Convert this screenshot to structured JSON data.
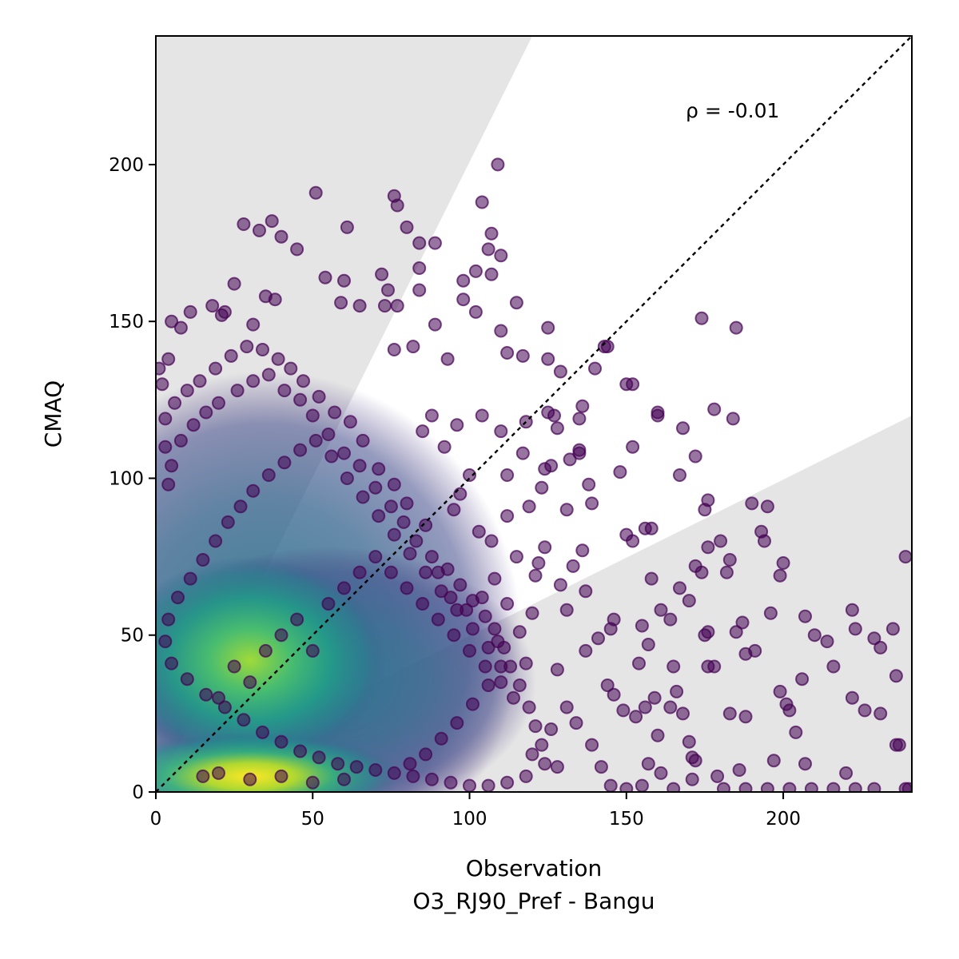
{
  "chart_data": {
    "type": "scatter",
    "xlabel": "Observation",
    "xlabel_sub": "O3_RJ90_Pref - Bangu",
    "ylabel": "CMAQ",
    "xlim": [
      0,
      241
    ],
    "ylim": [
      0,
      241
    ],
    "xticks": [
      0,
      50,
      100,
      150,
      200
    ],
    "yticks": [
      0,
      50,
      100,
      150,
      200
    ],
    "annotation": "ρ = -0.01",
    "grid": false,
    "identity_line": true,
    "shaded_wedges": [
      {
        "from": [
          0,
          0
        ],
        "upper_edge_point": [
          120,
          241
        ],
        "fill": "#e5e5e5"
      },
      {
        "from": [
          0,
          0
        ],
        "lower_edge_point": [
          241,
          120
        ],
        "fill": "#e5e5e5"
      }
    ],
    "colormap": "viridis",
    "point_color_low_density": "#440154",
    "point_color_high_density": "#fde725",
    "density_clusters": [
      {
        "x": 25,
        "y": 5,
        "peak_density": 1.0
      },
      {
        "x": 30,
        "y": 42,
        "peak_density": 0.85
      }
    ],
    "sample_points": [
      [
        109,
        200
      ],
      [
        51,
        191
      ],
      [
        76,
        190
      ],
      [
        77,
        187
      ],
      [
        104,
        188
      ],
      [
        37,
        182
      ],
      [
        28,
        181
      ],
      [
        33,
        179
      ],
      [
        40,
        177
      ],
      [
        61,
        180
      ],
      [
        80,
        180
      ],
      [
        89,
        175
      ],
      [
        84,
        175
      ],
      [
        45,
        173
      ],
      [
        107,
        178
      ],
      [
        106,
        173
      ],
      [
        110,
        171
      ],
      [
        102,
        166
      ],
      [
        107,
        165
      ],
      [
        84,
        167
      ],
      [
        54,
        164
      ],
      [
        60,
        163
      ],
      [
        72,
        165
      ],
      [
        25,
        162
      ],
      [
        98,
        163
      ],
      [
        74,
        160
      ],
      [
        84,
        160
      ],
      [
        98,
        157
      ],
      [
        115,
        156
      ],
      [
        35,
        158
      ],
      [
        38,
        157
      ],
      [
        18,
        155
      ],
      [
        59,
        156
      ],
      [
        65,
        155
      ],
      [
        22,
        153
      ],
      [
        11,
        153
      ],
      [
        73,
        155
      ],
      [
        77,
        155
      ],
      [
        102,
        153
      ],
      [
        5,
        150
      ],
      [
        8,
        148
      ],
      [
        21,
        152
      ],
      [
        31,
        149
      ],
      [
        89,
        149
      ],
      [
        110,
        147
      ],
      [
        125,
        148
      ],
      [
        174,
        151
      ],
      [
        185,
        148
      ],
      [
        143,
        142
      ],
      [
        144,
        142
      ],
      [
        112,
        140
      ],
      [
        117,
        139
      ],
      [
        4,
        138
      ],
      [
        76,
        141
      ],
      [
        82,
        142
      ],
      [
        93,
        138
      ],
      [
        125,
        138
      ],
      [
        140,
        135
      ],
      [
        129,
        134
      ],
      [
        150,
        130
      ],
      [
        152,
        130
      ],
      [
        168,
        116
      ],
      [
        160,
        121
      ],
      [
        178,
        122
      ],
      [
        184,
        119
      ],
      [
        172,
        107
      ],
      [
        167,
        101
      ],
      [
        160,
        120
      ],
      [
        152,
        110
      ],
      [
        148,
        102
      ],
      [
        135,
        109
      ],
      [
        135,
        108
      ],
      [
        138,
        98
      ],
      [
        139,
        92
      ],
      [
        131,
        90
      ],
      [
        156,
        84
      ],
      [
        158,
        84
      ],
      [
        150,
        82
      ],
      [
        152,
        80
      ],
      [
        175,
        90
      ],
      [
        176,
        93
      ],
      [
        190,
        92
      ],
      [
        195,
        91
      ],
      [
        193,
        83
      ],
      [
        194,
        80
      ],
      [
        180,
        80
      ],
      [
        176,
        78
      ],
      [
        172,
        72
      ],
      [
        174,
        70
      ],
      [
        182,
        70
      ],
      [
        183,
        74
      ],
      [
        200,
        73
      ],
      [
        199,
        69
      ],
      [
        239,
        75
      ],
      [
        158,
        68
      ],
      [
        167,
        65
      ],
      [
        170,
        61
      ],
      [
        161,
        58
      ],
      [
        164,
        55
      ],
      [
        155,
        53
      ],
      [
        145,
        52
      ],
      [
        146,
        55
      ],
      [
        157,
        47
      ],
      [
        175,
        50
      ],
      [
        176,
        51
      ],
      [
        187,
        54
      ],
      [
        185,
        51
      ],
      [
        196,
        57
      ],
      [
        191,
        45
      ],
      [
        188,
        44
      ],
      [
        207,
        56
      ],
      [
        210,
        50
      ],
      [
        214,
        48
      ],
      [
        222,
        58
      ],
      [
        223,
        52
      ],
      [
        229,
        49
      ],
      [
        231,
        46
      ],
      [
        235,
        52
      ],
      [
        216,
        40
      ],
      [
        176,
        40
      ],
      [
        178,
        40
      ],
      [
        165,
        40
      ],
      [
        154,
        41
      ],
      [
        159,
        30
      ],
      [
        166,
        32
      ],
      [
        168,
        25
      ],
      [
        171,
        11
      ],
      [
        172,
        10
      ],
      [
        183,
        25
      ],
      [
        188,
        24
      ],
      [
        199,
        32
      ],
      [
        201,
        28
      ],
      [
        202,
        26
      ],
      [
        206,
        36
      ],
      [
        222,
        30
      ],
      [
        226,
        26
      ],
      [
        231,
        25
      ],
      [
        236,
        37
      ],
      [
        204,
        19
      ],
      [
        170,
        16
      ],
      [
        160,
        18
      ],
      [
        144,
        34
      ],
      [
        146,
        31
      ],
      [
        149,
        26
      ],
      [
        153,
        24
      ],
      [
        156,
        27
      ],
      [
        164,
        27
      ],
      [
        197,
        10
      ],
      [
        207,
        9
      ],
      [
        220,
        6
      ],
      [
        236,
        15
      ],
      [
        237,
        15
      ],
      [
        186,
        7
      ],
      [
        179,
        5
      ],
      [
        157,
        9
      ],
      [
        161,
        6
      ],
      [
        171,
        4
      ],
      [
        181,
        1
      ],
      [
        188,
        1
      ],
      [
        195,
        1
      ],
      [
        202,
        1
      ],
      [
        209,
        1
      ],
      [
        216,
        1
      ],
      [
        223,
        1
      ],
      [
        229,
        1
      ],
      [
        239,
        1
      ],
      [
        240,
        1
      ],
      [
        145,
        2
      ],
      [
        150,
        1
      ],
      [
        155,
        2
      ],
      [
        165,
        1
      ],
      [
        133,
        72
      ],
      [
        129,
        66
      ],
      [
        122,
        73
      ],
      [
        124,
        78
      ],
      [
        120,
        57
      ],
      [
        112,
        60
      ],
      [
        108,
        68
      ],
      [
        103,
        83
      ],
      [
        100,
        101
      ],
      [
        97,
        95
      ],
      [
        95,
        90
      ],
      [
        88,
        120
      ],
      [
        85,
        115
      ],
      [
        92,
        110
      ],
      [
        96,
        117
      ],
      [
        104,
        120
      ],
      [
        110,
        115
      ],
      [
        118,
        118
      ],
      [
        124,
        103
      ],
      [
        126,
        104
      ],
      [
        123,
        97
      ],
      [
        117,
        108
      ],
      [
        112,
        101
      ],
      [
        125,
        121
      ],
      [
        127,
        120
      ],
      [
        128,
        116
      ],
      [
        136,
        123
      ],
      [
        135,
        119
      ],
      [
        132,
        106
      ],
      [
        119,
        91
      ],
      [
        112,
        88
      ],
      [
        107,
        80
      ],
      [
        115,
        75
      ],
      [
        121,
        69
      ],
      [
        136,
        77
      ],
      [
        131,
        58
      ],
      [
        137,
        64
      ],
      [
        141,
        49
      ],
      [
        137,
        45
      ],
      [
        128,
        39
      ],
      [
        131,
        27
      ],
      [
        126,
        20
      ],
      [
        134,
        22
      ],
      [
        139,
        15
      ],
      [
        142,
        8
      ],
      [
        128,
        8
      ],
      [
        120,
        12
      ],
      [
        114,
        30
      ],
      [
        118,
        41
      ],
      [
        116,
        51
      ],
      [
        109,
        48
      ],
      [
        104,
        62
      ],
      [
        99,
        58
      ],
      [
        94,
        62
      ],
      [
        90,
        70
      ],
      [
        86,
        85
      ],
      [
        80,
        92
      ],
      [
        76,
        98
      ],
      [
        71,
        103
      ],
      [
        66,
        112
      ],
      [
        62,
        118
      ],
      [
        57,
        121
      ],
      [
        52,
        126
      ],
      [
        47,
        131
      ],
      [
        43,
        135
      ],
      [
        39,
        138
      ],
      [
        34,
        141
      ],
      [
        29,
        142
      ],
      [
        24,
        139
      ],
      [
        19,
        135
      ],
      [
        14,
        131
      ],
      [
        10,
        128
      ],
      [
        6,
        124
      ],
      [
        3,
        119
      ],
      [
        2,
        130
      ],
      [
        1,
        135
      ],
      [
        3,
        110
      ],
      [
        5,
        104
      ],
      [
        4,
        98
      ],
      [
        8,
        112
      ],
      [
        12,
        117
      ],
      [
        16,
        121
      ],
      [
        20,
        124
      ],
      [
        26,
        128
      ],
      [
        31,
        131
      ],
      [
        36,
        133
      ],
      [
        41,
        128
      ],
      [
        46,
        125
      ],
      [
        50,
        120
      ],
      [
        55,
        114
      ],
      [
        60,
        108
      ],
      [
        65,
        104
      ],
      [
        70,
        97
      ],
      [
        75,
        91
      ],
      [
        79,
        86
      ],
      [
        83,
        80
      ],
      [
        88,
        75
      ],
      [
        93,
        71
      ],
      [
        97,
        66
      ],
      [
        101,
        61
      ],
      [
        105,
        56
      ],
      [
        108,
        52
      ],
      [
        111,
        46
      ],
      [
        113,
        40
      ],
      [
        116,
        34
      ],
      [
        119,
        27
      ],
      [
        121,
        21
      ],
      [
        123,
        15
      ],
      [
        124,
        9
      ],
      [
        118,
        5
      ],
      [
        112,
        3
      ],
      [
        106,
        2
      ],
      [
        100,
        2
      ],
      [
        94,
        3
      ],
      [
        88,
        4
      ],
      [
        82,
        5
      ],
      [
        76,
        6
      ],
      [
        70,
        7
      ],
      [
        64,
        8
      ],
      [
        58,
        9
      ],
      [
        52,
        11
      ],
      [
        46,
        13
      ],
      [
        40,
        16
      ],
      [
        34,
        19
      ],
      [
        28,
        23
      ],
      [
        22,
        27
      ],
      [
        16,
        31
      ],
      [
        10,
        36
      ],
      [
        5,
        41
      ],
      [
        3,
        48
      ],
      [
        4,
        55
      ],
      [
        7,
        62
      ],
      [
        11,
        68
      ],
      [
        15,
        74
      ],
      [
        19,
        80
      ],
      [
        23,
        86
      ],
      [
        27,
        91
      ],
      [
        31,
        96
      ],
      [
        36,
        101
      ],
      [
        41,
        105
      ],
      [
        46,
        109
      ],
      [
        51,
        112
      ],
      [
        56,
        107
      ],
      [
        61,
        100
      ],
      [
        66,
        94
      ],
      [
        71,
        88
      ],
      [
        76,
        82
      ],
      [
        81,
        76
      ],
      [
        86,
        70
      ],
      [
        91,
        64
      ],
      [
        96,
        58
      ],
      [
        101,
        52
      ],
      [
        106,
        46
      ],
      [
        110,
        40
      ],
      [
        106,
        34
      ],
      [
        101,
        28
      ],
      [
        96,
        22
      ],
      [
        91,
        17
      ],
      [
        86,
        12
      ],
      [
        81,
        9
      ],
      [
        15,
        5
      ],
      [
        20,
        6
      ],
      [
        30,
        4
      ],
      [
        40,
        5
      ],
      [
        50,
        3
      ],
      [
        60,
        4
      ],
      [
        35,
        45
      ],
      [
        25,
        40
      ],
      [
        40,
        50
      ],
      [
        45,
        55
      ],
      [
        30,
        35
      ],
      [
        20,
        30
      ],
      [
        50,
        45
      ],
      [
        55,
        60
      ],
      [
        60,
        65
      ],
      [
        65,
        70
      ],
      [
        70,
        75
      ],
      [
        75,
        70
      ],
      [
        80,
        65
      ],
      [
        85,
        60
      ],
      [
        90,
        55
      ],
      [
        95,
        50
      ],
      [
        100,
        45
      ],
      [
        105,
        40
      ],
      [
        110,
        35
      ]
    ]
  }
}
